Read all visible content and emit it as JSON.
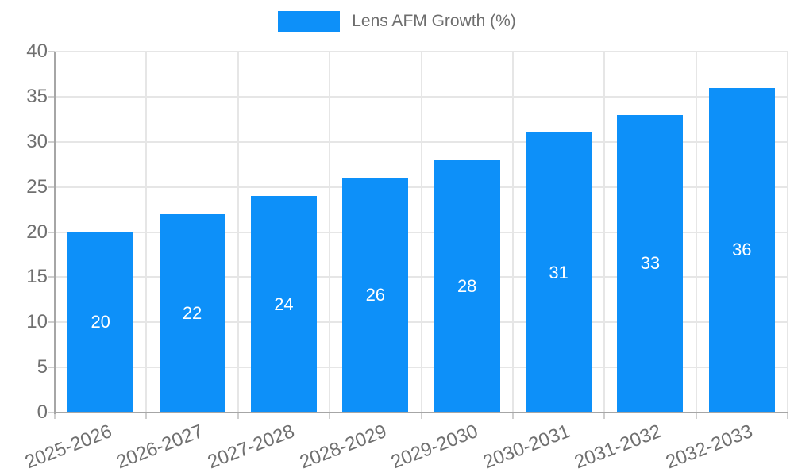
{
  "legend": {
    "label": "Lens AFM Growth (%)",
    "position": "top"
  },
  "colors": {
    "bar": "#0d90f9",
    "grid": "#e6e6e6",
    "axis": "#a6a6a6",
    "tick_mark": "#cfcfcf",
    "tick_text": "#707070",
    "legend_text": "#6e6e6e",
    "bar_label_text": "#ffffff",
    "background": "#ffffff"
  },
  "chart_data": {
    "type": "bar",
    "title": "",
    "xlabel": "",
    "ylabel": "",
    "categories": [
      "2025-2026",
      "2026-2027",
      "2027-2028",
      "2028-2029",
      "2029-2030",
      "2030-2031",
      "2031-2032",
      "2032-2033"
    ],
    "series": [
      {
        "name": "Lens AFM Growth (%)",
        "values": [
          20,
          22,
          24,
          26,
          28,
          31,
          33,
          36
        ]
      }
    ],
    "bar_value_labels": [
      "20",
      "22",
      "24",
      "26",
      "28",
      "31",
      "33",
      "36"
    ],
    "ylim": [
      0,
      40
    ],
    "yticks": [
      0,
      5,
      10,
      15,
      20,
      25,
      30,
      35,
      40
    ],
    "grid": true,
    "grid_vertical": true,
    "legend_position": "top",
    "bar_labels_inside": true,
    "x_label_rotation_deg": -21
  }
}
